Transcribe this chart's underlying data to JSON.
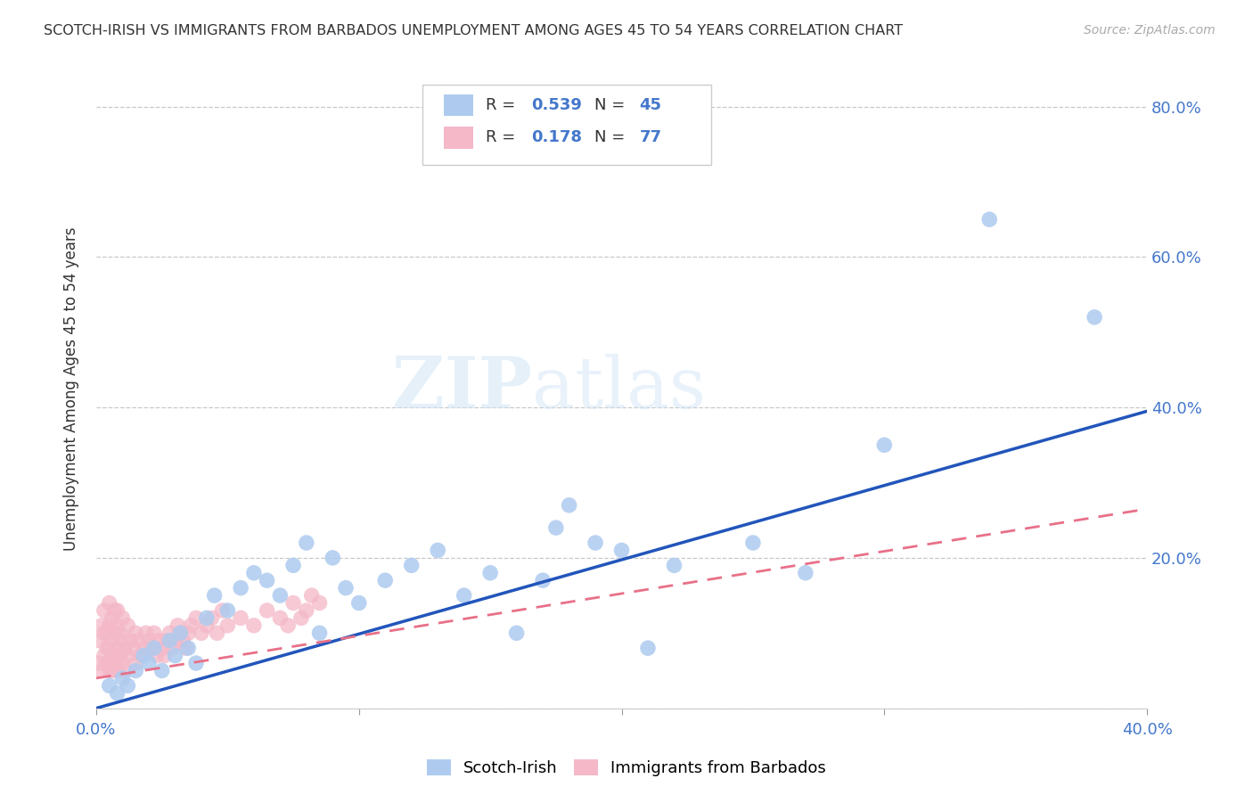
{
  "title": "SCOTCH-IRISH VS IMMIGRANTS FROM BARBADOS UNEMPLOYMENT AMONG AGES 45 TO 54 YEARS CORRELATION CHART",
  "source": "Source: ZipAtlas.com",
  "ylabel": "Unemployment Among Ages 45 to 54 years",
  "xlim": [
    0.0,
    0.4
  ],
  "ylim": [
    0.0,
    0.85
  ],
  "xticks": [
    0.0,
    0.1,
    0.2,
    0.3,
    0.4
  ],
  "yticks": [
    0.0,
    0.2,
    0.4,
    0.6,
    0.8
  ],
  "xtick_labels": [
    "0.0%",
    "",
    "",
    "",
    "40.0%"
  ],
  "ytick_labels_right": [
    "",
    "20.0%",
    "40.0%",
    "60.0%",
    "80.0%"
  ],
  "scotch_irish_color": "#aecbef",
  "barbados_color": "#f4b8c8",
  "scotch_irish_line_color": "#2255bb",
  "barbados_line_color": "#e87088",
  "R_scotch": 0.539,
  "N_scotch": 45,
  "R_barbados": 0.178,
  "N_barbados": 77,
  "scotch_irish_x": [
    0.005,
    0.008,
    0.01,
    0.012,
    0.015,
    0.018,
    0.02,
    0.022,
    0.025,
    0.028,
    0.03,
    0.032,
    0.035,
    0.038,
    0.042,
    0.045,
    0.05,
    0.055,
    0.06,
    0.065,
    0.07,
    0.075,
    0.08,
    0.085,
    0.09,
    0.095,
    0.1,
    0.11,
    0.12,
    0.13,
    0.14,
    0.15,
    0.16,
    0.17,
    0.175,
    0.18,
    0.19,
    0.2,
    0.21,
    0.22,
    0.25,
    0.27,
    0.3,
    0.34,
    0.38
  ],
  "scotch_irish_y": [
    0.03,
    0.02,
    0.04,
    0.03,
    0.05,
    0.07,
    0.06,
    0.08,
    0.05,
    0.09,
    0.07,
    0.1,
    0.08,
    0.06,
    0.12,
    0.15,
    0.13,
    0.16,
    0.18,
    0.17,
    0.15,
    0.19,
    0.22,
    0.1,
    0.2,
    0.16,
    0.14,
    0.17,
    0.19,
    0.21,
    0.15,
    0.18,
    0.1,
    0.17,
    0.24,
    0.27,
    0.22,
    0.21,
    0.08,
    0.19,
    0.22,
    0.18,
    0.35,
    0.65,
    0.52
  ],
  "barbados_x": [
    0.001,
    0.001,
    0.002,
    0.002,
    0.003,
    0.003,
    0.003,
    0.004,
    0.004,
    0.004,
    0.005,
    0.005,
    0.005,
    0.005,
    0.006,
    0.006,
    0.006,
    0.006,
    0.007,
    0.007,
    0.007,
    0.007,
    0.008,
    0.008,
    0.008,
    0.008,
    0.009,
    0.009,
    0.01,
    0.01,
    0.01,
    0.011,
    0.011,
    0.012,
    0.012,
    0.013,
    0.014,
    0.015,
    0.015,
    0.016,
    0.017,
    0.018,
    0.019,
    0.02,
    0.021,
    0.022,
    0.023,
    0.024,
    0.025,
    0.026,
    0.027,
    0.028,
    0.029,
    0.03,
    0.031,
    0.032,
    0.033,
    0.034,
    0.035,
    0.036,
    0.038,
    0.04,
    0.042,
    0.044,
    0.046,
    0.048,
    0.05,
    0.055,
    0.06,
    0.065,
    0.07,
    0.073,
    0.075,
    0.078,
    0.08,
    0.082,
    0.085
  ],
  "barbados_y": [
    0.06,
    0.09,
    0.05,
    0.11,
    0.07,
    0.1,
    0.13,
    0.08,
    0.1,
    0.06,
    0.05,
    0.08,
    0.11,
    0.14,
    0.06,
    0.09,
    0.12,
    0.05,
    0.07,
    0.1,
    0.13,
    0.06,
    0.08,
    0.11,
    0.05,
    0.13,
    0.07,
    0.1,
    0.06,
    0.09,
    0.12,
    0.08,
    0.05,
    0.07,
    0.11,
    0.09,
    0.08,
    0.06,
    0.1,
    0.09,
    0.07,
    0.08,
    0.1,
    0.09,
    0.08,
    0.1,
    0.07,
    0.09,
    0.08,
    0.07,
    0.09,
    0.1,
    0.08,
    0.09,
    0.11,
    0.1,
    0.09,
    0.08,
    0.1,
    0.11,
    0.12,
    0.1,
    0.11,
    0.12,
    0.1,
    0.13,
    0.11,
    0.12,
    0.11,
    0.13,
    0.12,
    0.11,
    0.14,
    0.12,
    0.13,
    0.15,
    0.14
  ],
  "si_line_x0": 0.0,
  "si_line_y0": 0.0,
  "si_line_x1": 0.4,
  "si_line_y1": 0.395,
  "bb_line_x0": 0.0,
  "bb_line_y0": 0.04,
  "bb_line_x1": 0.4,
  "bb_line_y1": 0.265,
  "watermark_text": "ZIPatlas",
  "legend_label_scotch": "Scotch-Irish",
  "legend_label_barbados": "Immigrants from Barbados",
  "background_color": "#ffffff",
  "grid_color": "#c8c8c8"
}
